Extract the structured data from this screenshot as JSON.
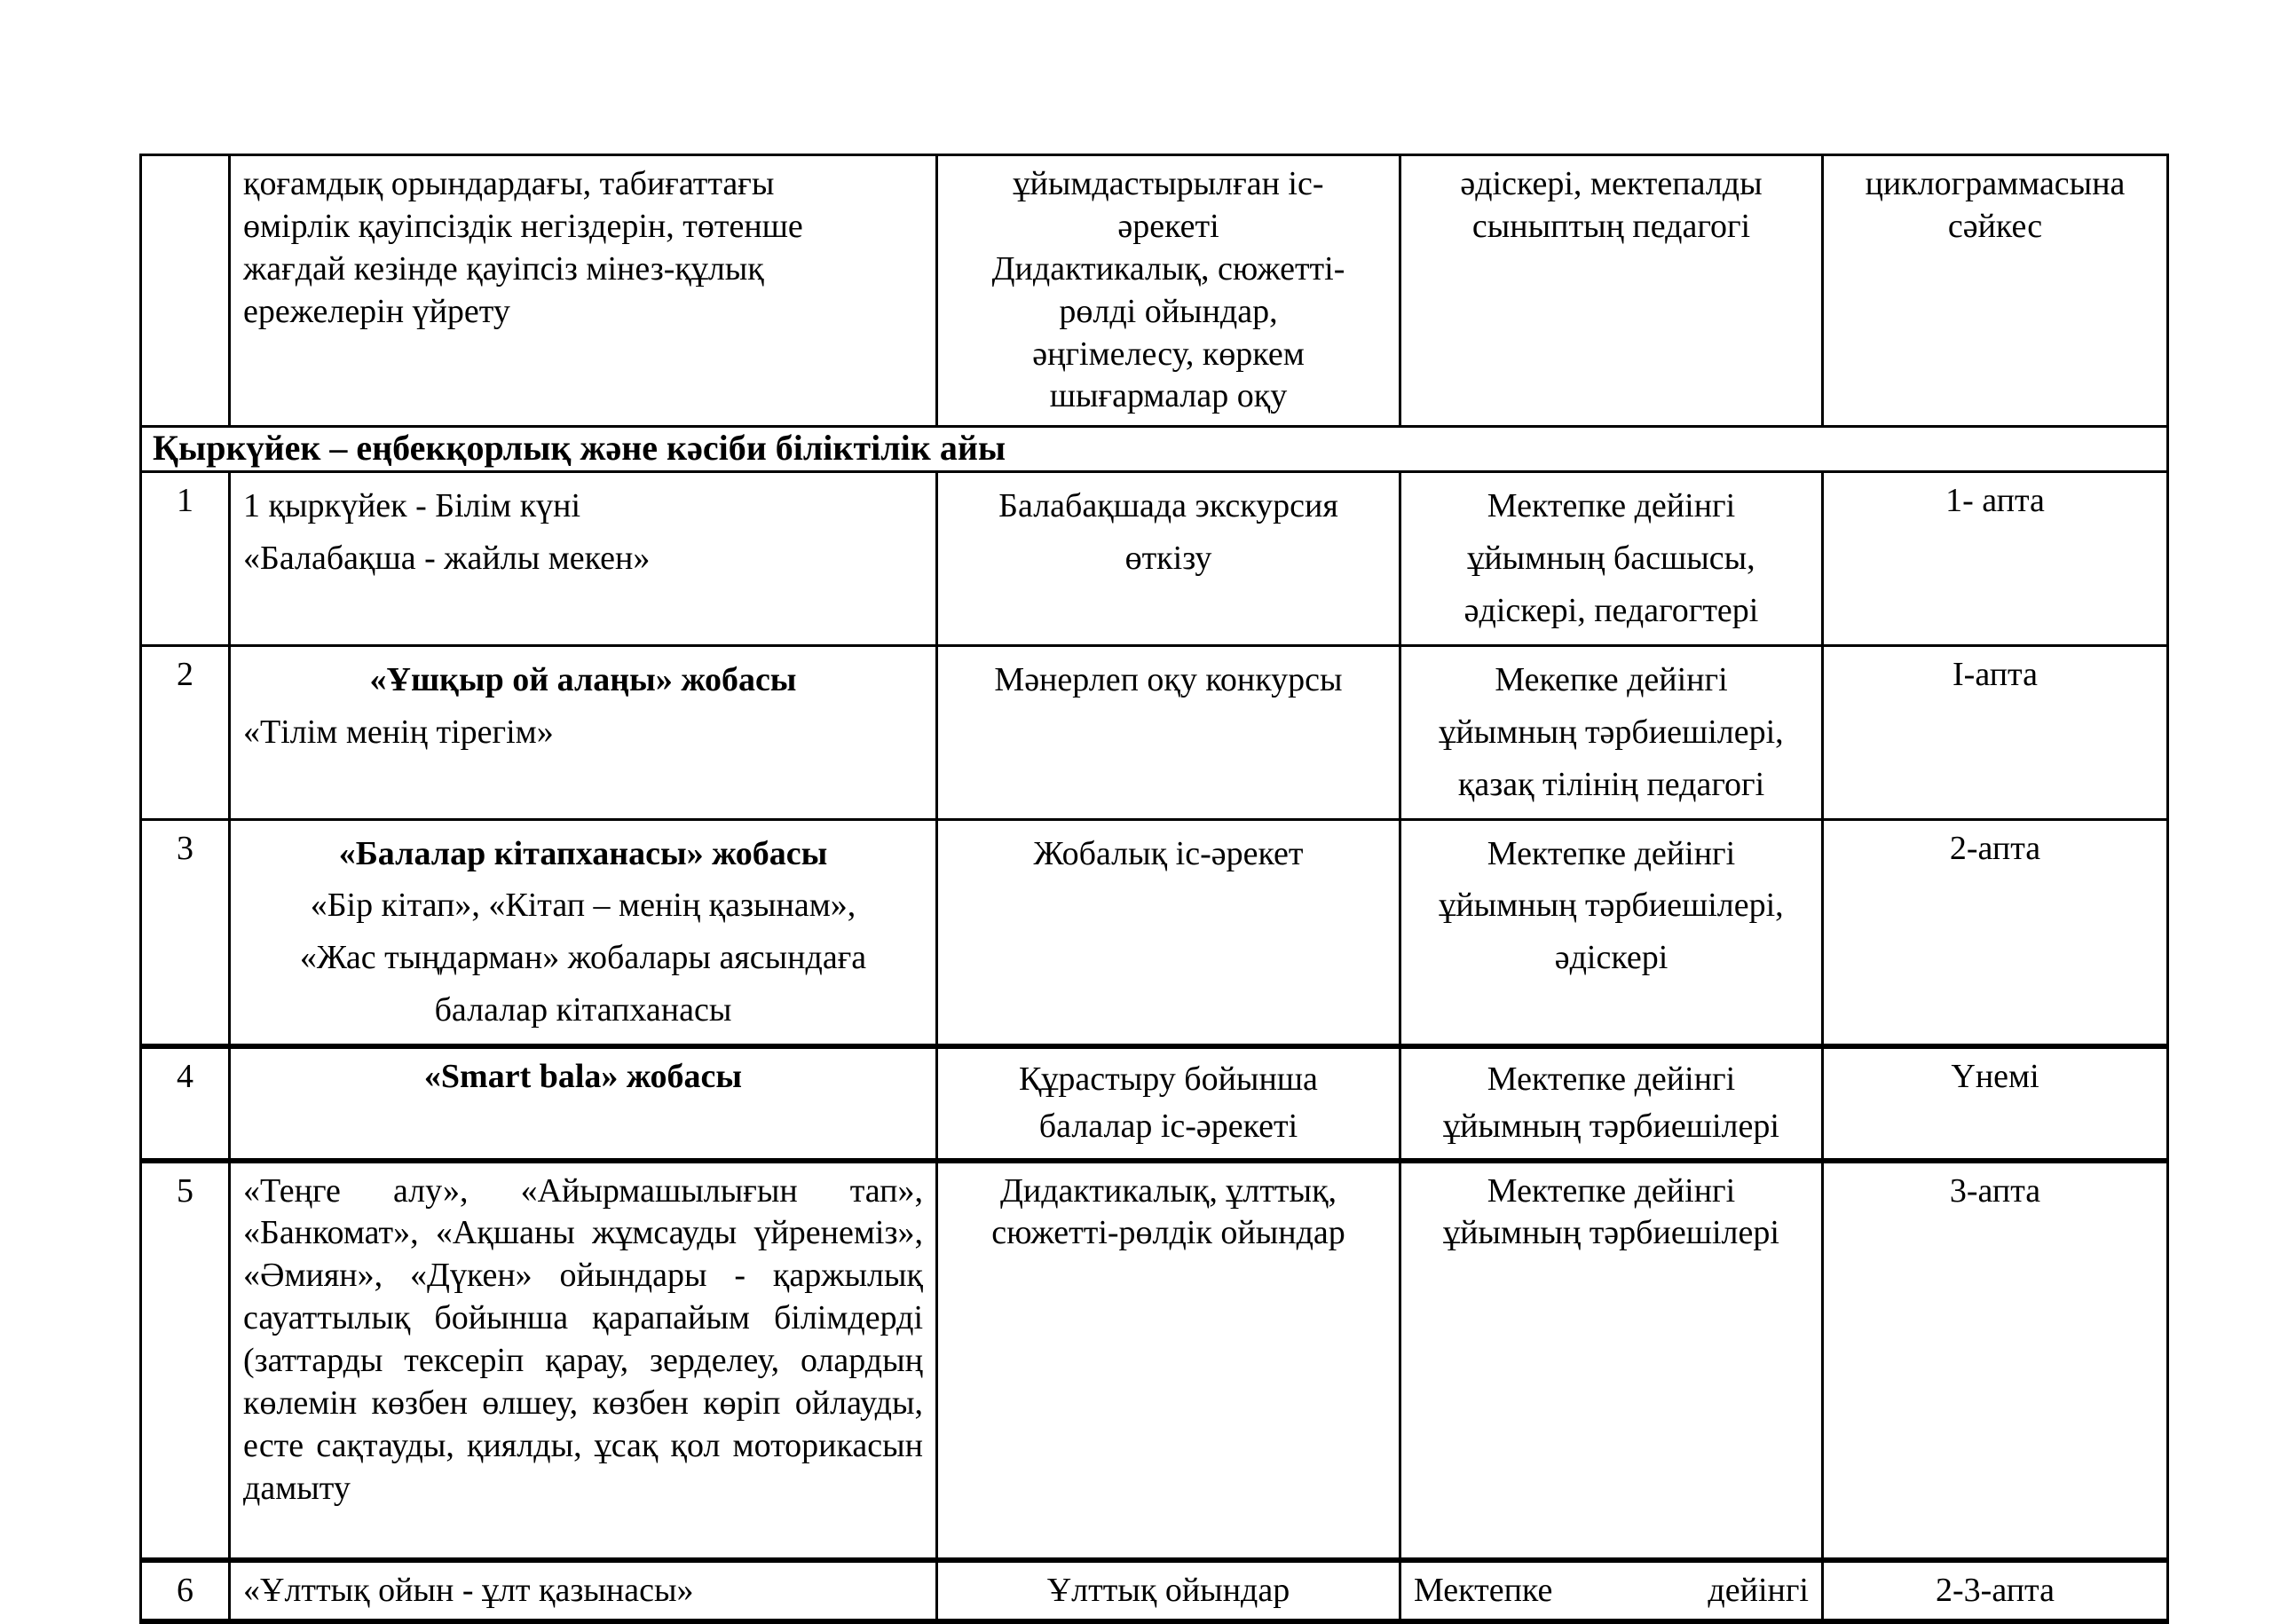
{
  "colors": {
    "background": "#ffffff",
    "text": "#000000",
    "border": "#000000"
  },
  "section_title": "Қыркүйек – еңбекқорлық және кәсіби біліктілік айы",
  "carryover_row": {
    "num": "",
    "content": "қоғамдық орындардағы, табиғаттағы\nөмірлік қауіпсіздік негіздерін, төтенше\nжағдай кезінде қауіпсіз мінез-құлық\nережелерін үйрету",
    "activity": "ұйымдастырылған іс-\nәрекеті\nДидактикалық, сюжетті-\nрөлді ойындар,\nәңгімелесу, көркем\nшығармалар оқу",
    "responsible": "әдіскері, мектепалды\nсыныптың педагогі",
    "term": "циклограммасына\nсәйкес"
  },
  "rows": [
    {
      "num": "1",
      "body": "1 қыркүйек - Білім күні\n«Балабақша - жайлы мекен»",
      "activity": "Балабақшада экскурсия\nөткізу",
      "responsible": "Мектепке дейінгі\nұйымның басшысы,\nәдіскері, педагогтері",
      "term": "1- апта"
    },
    {
      "num": "2",
      "title": "«Ұшқыр ой алаңы» жобасы",
      "body": "«Тілім менің тірегім»",
      "activity": "Мәнерлеп оқу конкурсы",
      "responsible": "Мекепке дейінгі\nұйымның тәрбиешілері,\nқазақ тілінің педагогі",
      "term": "І-апта"
    },
    {
      "num": "3",
      "title": "«Балалар кітапханасы» жобасы",
      "body": "«Бір кітап», «Кітап – менің қазынам»,\n«Жас тыңдарман» жобалары аясындаға\nбалалар кітапханасы",
      "activity": "Жобалық іс-әрекет",
      "responsible": "Мектепке дейінгі\nұйымның тәрбиешілері,\nәдіскері",
      "term": "2-апта"
    },
    {
      "num": "4",
      "title": "«Smart bala» жобасы",
      "activity": "Құрастыру бойынша\nбалалар іс-әрекеті",
      "responsible": "Мектепке дейінгі\nұйымның тәрбиешілері",
      "term": "Үнемі"
    },
    {
      "num": "5",
      "body": "«Теңге алу», «Айырмашылығын тап», «Банкомат», «Ақшаны жұмсауды үйренеміз», «Әмиян», «Дүкен» ойындары - қаржылық сауаттылық бойынша қарапайым білімдерді (заттарды тексеріп қарау, зерделеу, олардың көлемін көзбен өлшеу, көзбен көріп ойлауды, есте сақтауды, қиялды, ұсақ қол моторикасын дамыту",
      "activity": "Дидактикалық, ұлттық,\nсюжетті-рөлдік ойындар",
      "responsible": "Мектепке дейінгі\nұйымның тәрбиешілері",
      "term": "3-апта"
    },
    {
      "num": "6",
      "body": "«Ұлттық ойын - ұлт қазынасы»",
      "activity": "Ұлттық ойындар",
      "responsible": "Мектепке дейінгі",
      "term": "2-3-апта"
    }
  ]
}
